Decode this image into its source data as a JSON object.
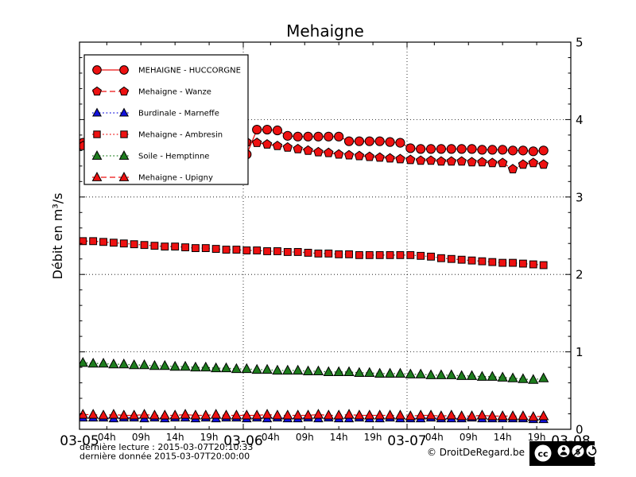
{
  "header": {
    "title": "Mehaigne"
  },
  "footer": {
    "last_read": "dernière lecture : 2015-03-07T20:10:33",
    "last_data": "dernière donnée  2015-03-07T20:00:00",
    "copyright": "© DroitDeRegard.be",
    "license": {
      "cc": "cc",
      "parts": [
        "BY",
        "NC",
        "SA"
      ]
    }
  },
  "chart_data": {
    "type": "line",
    "title": "Mehaigne",
    "xlabel": "",
    "ylabel": "Débit en m³/s",
    "ylim": [
      0,
      5
    ],
    "x_range": [
      0,
      72
    ],
    "x_unit": "hours since 2015-03-05T00:00",
    "grid": "horizontal dotted at integers, vertical dotted at day boundaries",
    "legend_position": "upper-left",
    "y_major_ticks": [
      0,
      1,
      2,
      3,
      4,
      5
    ],
    "y_minor_step": 0.2,
    "grid_horizontal_at": [
      1,
      2,
      3,
      4
    ],
    "day_ticks": [
      {
        "t": 0,
        "label": "03-05",
        "grid": false
      },
      {
        "t": 24,
        "label": "03-06",
        "grid": true
      },
      {
        "t": 48,
        "label": "03-07",
        "grid": true
      },
      {
        "t": 72,
        "label": "03-08",
        "grid": false
      }
    ],
    "hour_tick_offsets": [
      4,
      9,
      14,
      19
    ],
    "x_hour_labels": [
      "04h",
      "09h",
      "14h",
      "19h"
    ],
    "x_hours": [
      0.5,
      2,
      3.5,
      5,
      6.5,
      8,
      9.5,
      11,
      12.5,
      14,
      15.5,
      17,
      18.5,
      20,
      21.5,
      23,
      24.5,
      26,
      27.5,
      29,
      30.5,
      32,
      33.5,
      35,
      36.5,
      38,
      39.5,
      41,
      42.5,
      44,
      45.5,
      47,
      48.5,
      50,
      51.5,
      53,
      54.5,
      56,
      57.5,
      59,
      60.5,
      62,
      63.5,
      65,
      66.5,
      68
    ],
    "series": [
      {
        "name": "MEHAIGNE - HUCCORGNE",
        "color": "#ee1111",
        "marker": "circle",
        "marker_size": 5.6,
        "line": "solid",
        "values": [
          3.7,
          4.15,
          3.93,
          3.88,
          3.85,
          3.83,
          3.81,
          3.79,
          3.77,
          3.75,
          3.73,
          3.71,
          3.69,
          3.66,
          3.62,
          3.58,
          3.55,
          3.87,
          3.87,
          3.86,
          3.79,
          3.78,
          3.78,
          3.78,
          3.78,
          3.78,
          3.72,
          3.72,
          3.72,
          3.72,
          3.71,
          3.7,
          3.63,
          3.62,
          3.62,
          3.62,
          3.62,
          3.62,
          3.62,
          3.61,
          3.61,
          3.61,
          3.6,
          3.6,
          3.59,
          3.6
        ]
      },
      {
        "name": "Mehaigne - Wanze",
        "color": "#ee1111",
        "marker": "pentagon",
        "marker_size": 5.4,
        "line": "dashed",
        "values": [
          3.66,
          3.8,
          3.79,
          3.77,
          3.75,
          3.73,
          3.72,
          3.71,
          3.7,
          3.69,
          3.68,
          3.67,
          3.66,
          3.65,
          3.64,
          3.63,
          3.71,
          3.7,
          3.68,
          3.66,
          3.64,
          3.62,
          3.6,
          3.58,
          3.57,
          3.55,
          3.54,
          3.53,
          3.52,
          3.51,
          3.5,
          3.49,
          3.48,
          3.47,
          3.47,
          3.46,
          3.46,
          3.46,
          3.45,
          3.45,
          3.44,
          3.44,
          3.36,
          3.42,
          3.44,
          3.42
        ]
      },
      {
        "name": "Burdinale - Marneffe",
        "color": "#1111dd",
        "marker": "triangle",
        "marker_size": 5.0,
        "line": "dotted",
        "values": [
          0.15,
          0.15,
          0.15,
          0.14,
          0.15,
          0.15,
          0.14,
          0.15,
          0.14,
          0.15,
          0.15,
          0.14,
          0.15,
          0.14,
          0.15,
          0.15,
          0.14,
          0.15,
          0.14,
          0.15,
          0.14,
          0.14,
          0.15,
          0.14,
          0.15,
          0.14,
          0.14,
          0.15,
          0.14,
          0.14,
          0.15,
          0.14,
          0.14,
          0.14,
          0.15,
          0.14,
          0.14,
          0.14,
          0.15,
          0.14,
          0.14,
          0.14,
          0.14,
          0.14,
          0.13,
          0.13
        ]
      },
      {
        "name": "Mehaigne - Ambresin",
        "color": "#ee1111",
        "marker": "square",
        "marker_size": 5.2,
        "line": "dotted",
        "values": [
          2.43,
          2.43,
          2.42,
          2.41,
          2.4,
          2.39,
          2.38,
          2.37,
          2.36,
          2.36,
          2.35,
          2.34,
          2.34,
          2.33,
          2.32,
          2.32,
          2.31,
          2.31,
          2.3,
          2.3,
          2.29,
          2.29,
          2.28,
          2.27,
          2.27,
          2.26,
          2.26,
          2.25,
          2.25,
          2.25,
          2.25,
          2.25,
          2.25,
          2.24,
          2.23,
          2.21,
          2.2,
          2.19,
          2.18,
          2.17,
          2.16,
          2.15,
          2.15,
          2.14,
          2.13,
          2.12
        ]
      },
      {
        "name": "Soile - Hemptinne",
        "color": "#1e7d1e",
        "marker": "triangle",
        "marker_size": 5.4,
        "line": "dotted",
        "values": [
          0.86,
          0.85,
          0.85,
          0.84,
          0.84,
          0.83,
          0.83,
          0.82,
          0.82,
          0.81,
          0.81,
          0.8,
          0.8,
          0.79,
          0.79,
          0.78,
          0.78,
          0.77,
          0.77,
          0.76,
          0.76,
          0.76,
          0.75,
          0.75,
          0.74,
          0.74,
          0.74,
          0.73,
          0.73,
          0.72,
          0.72,
          0.72,
          0.71,
          0.71,
          0.7,
          0.7,
          0.7,
          0.69,
          0.69,
          0.68,
          0.68,
          0.67,
          0.66,
          0.65,
          0.64,
          0.66
        ]
      },
      {
        "name": "Mehaigne - Upigny",
        "color": "#ee1111",
        "marker": "triangle",
        "marker_size": 5.4,
        "line": "dashed",
        "values": [
          0.19,
          0.19,
          0.18,
          0.19,
          0.18,
          0.18,
          0.19,
          0.18,
          0.18,
          0.18,
          0.19,
          0.18,
          0.18,
          0.19,
          0.18,
          0.18,
          0.18,
          0.18,
          0.19,
          0.18,
          0.18,
          0.18,
          0.18,
          0.19,
          0.18,
          0.18,
          0.19,
          0.18,
          0.18,
          0.18,
          0.18,
          0.18,
          0.17,
          0.18,
          0.18,
          0.17,
          0.18,
          0.17,
          0.17,
          0.18,
          0.17,
          0.17,
          0.17,
          0.17,
          0.16,
          0.17
        ]
      }
    ]
  }
}
